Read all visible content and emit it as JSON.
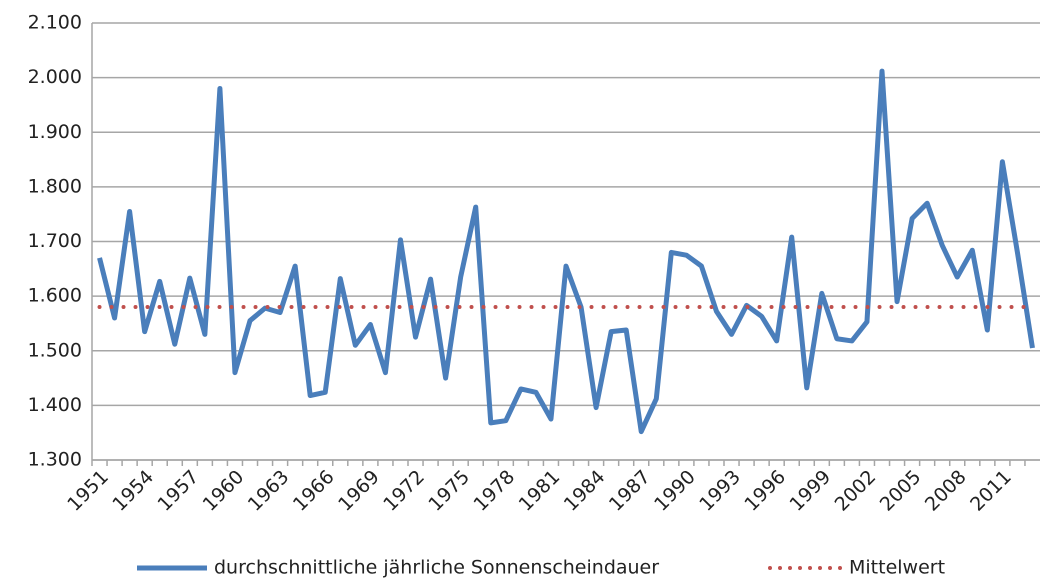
{
  "chart_data": {
    "type": "line",
    "categories": [
      "1951",
      null,
      null,
      "1954",
      null,
      null,
      "1957",
      null,
      null,
      "1960",
      null,
      null,
      "1963",
      null,
      null,
      "1966",
      null,
      null,
      "1969",
      null,
      null,
      "1972",
      null,
      null,
      "1975",
      null,
      null,
      "1978",
      null,
      null,
      "1981",
      null,
      null,
      "1984",
      null,
      null,
      "1987",
      null,
      null,
      "1990",
      null,
      null,
      "1993",
      null,
      null,
      "1996",
      null,
      null,
      "1999",
      null,
      null,
      "2002",
      null,
      null,
      "2005",
      null,
      null,
      "2008",
      null,
      null,
      "2011",
      null,
      null
    ],
    "series": [
      {
        "name": "durchschnittliche jährliche Sonnenscheindauer",
        "color": "#4a7ebb",
        "style": "solid",
        "values": [
          1670,
          1560,
          1755,
          1535,
          1627,
          1512,
          1633,
          1530,
          1980,
          1460,
          1555,
          1578,
          1570,
          1655,
          1418,
          1424,
          1632,
          1510,
          1548,
          1460,
          1703,
          1525,
          1631,
          1450,
          1635,
          1763,
          1368,
          1372,
          1430,
          1424,
          1375,
          1655,
          1580,
          1396,
          1535,
          1538,
          1352,
          1412,
          1680,
          1675,
          1655,
          1572,
          1530,
          1583,
          1563,
          1518,
          1708,
          1432,
          1605,
          1522,
          1518,
          1553,
          2012,
          1590,
          1742,
          1770,
          1693,
          1635,
          1684,
          1538,
          1846,
          1680,
          1505
        ]
      },
      {
        "name": "Mittelwert",
        "color": "#c0504d",
        "style": "dotted",
        "values": [
          1580,
          1580,
          1580,
          1580,
          1580,
          1580,
          1580,
          1580,
          1580,
          1580,
          1580,
          1580,
          1580,
          1580,
          1580,
          1580,
          1580,
          1580,
          1580,
          1580,
          1580,
          1580,
          1580,
          1580,
          1580,
          1580,
          1580,
          1580,
          1580,
          1580,
          1580,
          1580,
          1580,
          1580,
          1580,
          1580,
          1580,
          1580,
          1580,
          1580,
          1580,
          1580,
          1580,
          1580,
          1580,
          1580,
          1580,
          1580,
          1580,
          1580,
          1580,
          1580,
          1580,
          1580,
          1580,
          1580,
          1580,
          1580,
          1580,
          1580,
          1580,
          1580,
          1580
        ]
      }
    ],
    "ylim": [
      1300,
      2100
    ],
    "yticks": [
      {
        "value": 1300,
        "label": "1.300"
      },
      {
        "value": 1400,
        "label": "1.400"
      },
      {
        "value": 1500,
        "label": "1.500"
      },
      {
        "value": 1600,
        "label": "1.600"
      },
      {
        "value": 1700,
        "label": "1.700"
      },
      {
        "value": 1800,
        "label": "1.800"
      },
      {
        "value": 1900,
        "label": "1.900"
      },
      {
        "value": 2000,
        "label": "2.000"
      },
      {
        "value": 2100,
        "label": "2.100"
      }
    ],
    "grid": true,
    "legend": "bottom"
  }
}
